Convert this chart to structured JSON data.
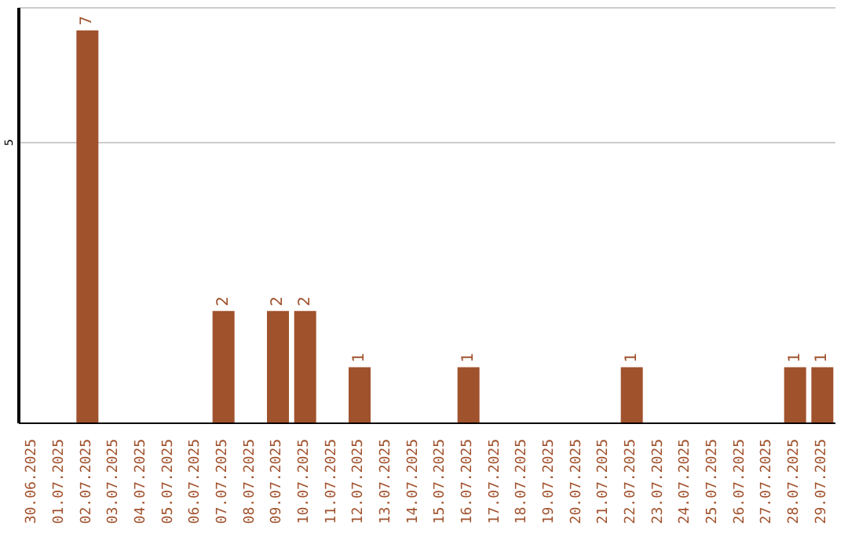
{
  "chart_data": {
    "type": "bar",
    "categories": [
      "30.06.2025",
      "01.07.2025",
      "02.07.2025",
      "03.07.2025",
      "04.07.2025",
      "05.07.2025",
      "06.07.2025",
      "07.07.2025",
      "08.07.2025",
      "09.07.2025",
      "10.07.2025",
      "11.07.2025",
      "12.07.2025",
      "13.07.2025",
      "14.07.2025",
      "15.07.2025",
      "16.07.2025",
      "17.07.2025",
      "18.07.2025",
      "19.07.2025",
      "20.07.2025",
      "21.07.2025",
      "22.07.2025",
      "23.07.2025",
      "24.07.2025",
      "25.07.2025",
      "26.07.2025",
      "27.07.2025",
      "28.07.2025",
      "29.07.2025"
    ],
    "values": [
      0,
      0,
      7,
      0,
      0,
      0,
      0,
      2,
      0,
      2,
      2,
      0,
      1,
      0,
      0,
      0,
      1,
      0,
      0,
      0,
      0,
      0,
      1,
      0,
      0,
      0,
      0,
      0,
      1,
      1
    ],
    "value_labels": [
      null,
      null,
      "7",
      null,
      null,
      null,
      null,
      "2",
      null,
      "2",
      "2",
      null,
      "1",
      null,
      null,
      null,
      "1",
      null,
      null,
      null,
      null,
      null,
      "1",
      null,
      null,
      null,
      null,
      null,
      "1",
      "1"
    ],
    "color": "#a0522d",
    "ylim": [
      0,
      7.4
    ],
    "yticks": [
      5
    ],
    "grid": "y"
  }
}
